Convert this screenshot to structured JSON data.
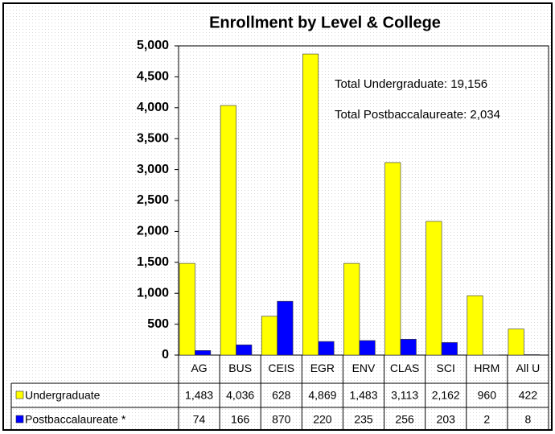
{
  "chart_data": {
    "type": "bar",
    "title": "Enrollment by Level & College",
    "categories": [
      "AG",
      "BUS",
      "CEIS",
      "EGR",
      "ENV",
      "CLAS",
      "SCI",
      "HRM",
      "All U"
    ],
    "series": [
      {
        "name": "Undergraduate",
        "color": "#ffff00",
        "values": [
          1483,
          4036,
          628,
          4869,
          1483,
          3113,
          2162,
          960,
          422
        ],
        "value_labels": [
          "1,483",
          "4,036",
          "628",
          "4,869",
          "1,483",
          "3,113",
          "2,162",
          "960",
          "422"
        ]
      },
      {
        "name": "Postbaccalaureate *",
        "color": "#0000ff",
        "values": [
          74,
          166,
          870,
          220,
          235,
          256,
          203,
          2,
          8
        ],
        "value_labels": [
          "74",
          "166",
          "870",
          "220",
          "235",
          "256",
          "203",
          "2",
          "8"
        ]
      }
    ],
    "annotations": [
      "Total Undergraduate: 19,156",
      "Total Postbaccalaureate: 2,034"
    ],
    "ylim": [
      0,
      5000
    ],
    "yticks": [
      0,
      500,
      {
        "value": 1000,
        "label": "1,000"
      },
      {
        "value": 1500,
        "label": "1,500"
      },
      {
        "value": 2000,
        "label": "2,000"
      },
      {
        "value": 2500,
        "label": "2,500"
      },
      {
        "value": 3000,
        "label": "3,000"
      },
      {
        "value": 3500,
        "label": "3,500"
      },
      {
        "value": 4000,
        "label": "4,000"
      },
      {
        "value": 4500,
        "label": "4,500"
      },
      {
        "value": 5000,
        "label": "5,000"
      }
    ]
  }
}
